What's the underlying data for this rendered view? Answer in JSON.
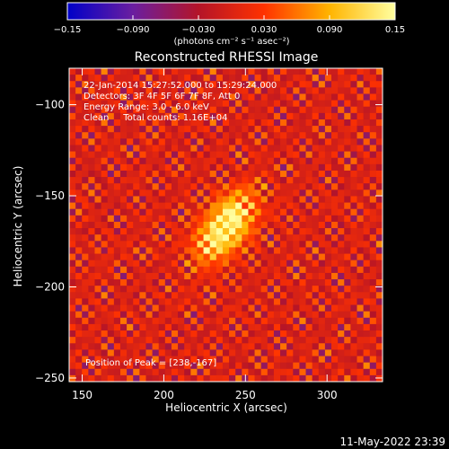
{
  "chart_data": {
    "type": "heatmap",
    "title": "Reconstructed RHESSI Image",
    "xlabel": "Heliocentric X (arcsec)",
    "ylabel": "Heliocentric Y (arcsec)",
    "xlim": [
      142,
      334
    ],
    "ylim": [
      -252,
      -80
    ],
    "x_ticks": [
      150,
      200,
      250,
      300
    ],
    "y_ticks": [
      -250,
      -200,
      -150,
      -100
    ],
    "colorbar": {
      "range": [
        -0.15,
        0.15
      ],
      "ticks": [
        -0.15,
        -0.09,
        -0.03,
        0.03,
        0.09,
        0.15
      ],
      "tick_labels": [
        "−0.15",
        "−0.090",
        "−0.030",
        "0.030",
        "0.090",
        "0.15"
      ],
      "unit_label": "(photons cm⁻² s⁻¹ asec⁻²)",
      "colormap": [
        "#0000c8",
        "#6a1ea0",
        "#b41428",
        "#ff3200",
        "#ffb400",
        "#ffffa0"
      ]
    },
    "annotations": [
      "22-Jan-2014 15:27:52.000 to 15:29:24.000",
      "Detectors: 3F 4F 5F 6F 7F 8F, Att 0",
      "Energy Range: 3.0 - 6.0 keV",
      "Clean     Total counts: 1.16E+04"
    ],
    "peak": {
      "label": "Position of Peak = [238,-167]",
      "x": 238,
      "y": -167
    },
    "grid": false
  },
  "footer": {
    "date": "11-May-2022 23:39"
  }
}
